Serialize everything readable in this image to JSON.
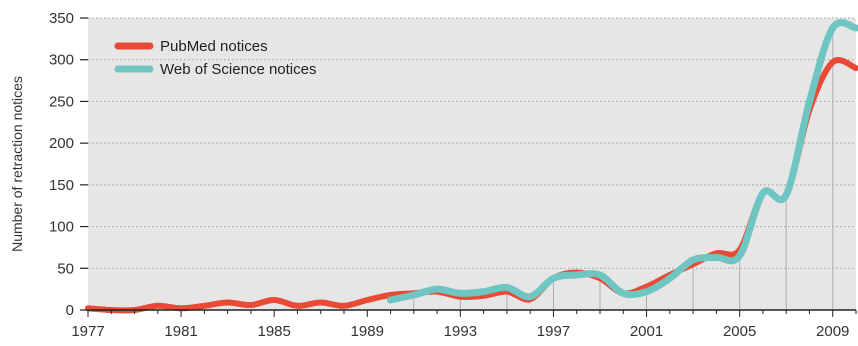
{
  "chart_data": {
    "type": "line",
    "title": "",
    "xlabel": "",
    "ylabel": "Number of retraction notices",
    "xlim": [
      1977,
      2010
    ],
    "ylim": [
      0,
      350
    ],
    "x_ticks": [
      1977,
      1981,
      1985,
      1989,
      1993,
      1997,
      2001,
      2005,
      2009
    ],
    "y_ticks": [
      0,
      50,
      100,
      150,
      200,
      250,
      300,
      350
    ],
    "grid": "horizontal dotted",
    "legend_position": "top-left",
    "colors": {
      "plot_bg": "#e6e6e6",
      "grid": "#9a9a9a",
      "axis": "#222222",
      "drop_lines": "#b0b0b0"
    },
    "series": [
      {
        "name": "PubMed notices",
        "color": "#e84a35",
        "x": [
          1977,
          1978,
          1979,
          1980,
          1981,
          1982,
          1983,
          1984,
          1985,
          1986,
          1987,
          1988,
          1989,
          1990,
          1991,
          1992,
          1993,
          1994,
          1995,
          1996,
          1997,
          1998,
          1999,
          2000,
          2001,
          2002,
          2003,
          2004,
          2005,
          2006,
          2007,
          2008,
          2009,
          2010
        ],
        "values": [
          2,
          0,
          0,
          5,
          2,
          5,
          9,
          6,
          12,
          5,
          9,
          5,
          12,
          18,
          20,
          22,
          16,
          17,
          22,
          13,
          38,
          45,
          38,
          20,
          28,
          42,
          55,
          68,
          72,
          140,
          138,
          240,
          297,
          290
        ]
      },
      {
        "name": "Web of Science notices",
        "color": "#6fc5c2",
        "x": [
          1990,
          1991,
          1992,
          1993,
          1994,
          1995,
          1996,
          1997,
          1998,
          1999,
          2000,
          2001,
          2002,
          2003,
          2004,
          2005,
          2006,
          2007,
          2008,
          2009,
          2010
        ],
        "values": [
          12,
          18,
          25,
          20,
          22,
          27,
          16,
          38,
          42,
          42,
          20,
          22,
          38,
          60,
          63,
          65,
          140,
          138,
          250,
          338,
          338
        ]
      }
    ],
    "drop_lines_at": [
      1991,
      1993,
      1995,
      1997,
      1999,
      2001,
      2003,
      2005,
      2007,
      2009
    ]
  }
}
